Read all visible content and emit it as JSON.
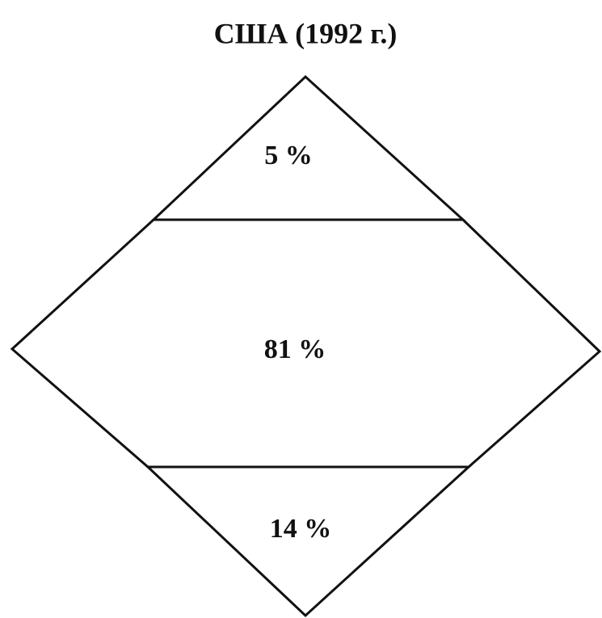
{
  "chart_data": {
    "type": "diamond",
    "title": "США (1992 г.)",
    "values": [
      5,
      81,
      14
    ],
    "value_labels": [
      "5 %",
      "81 %",
      "14 %"
    ]
  }
}
